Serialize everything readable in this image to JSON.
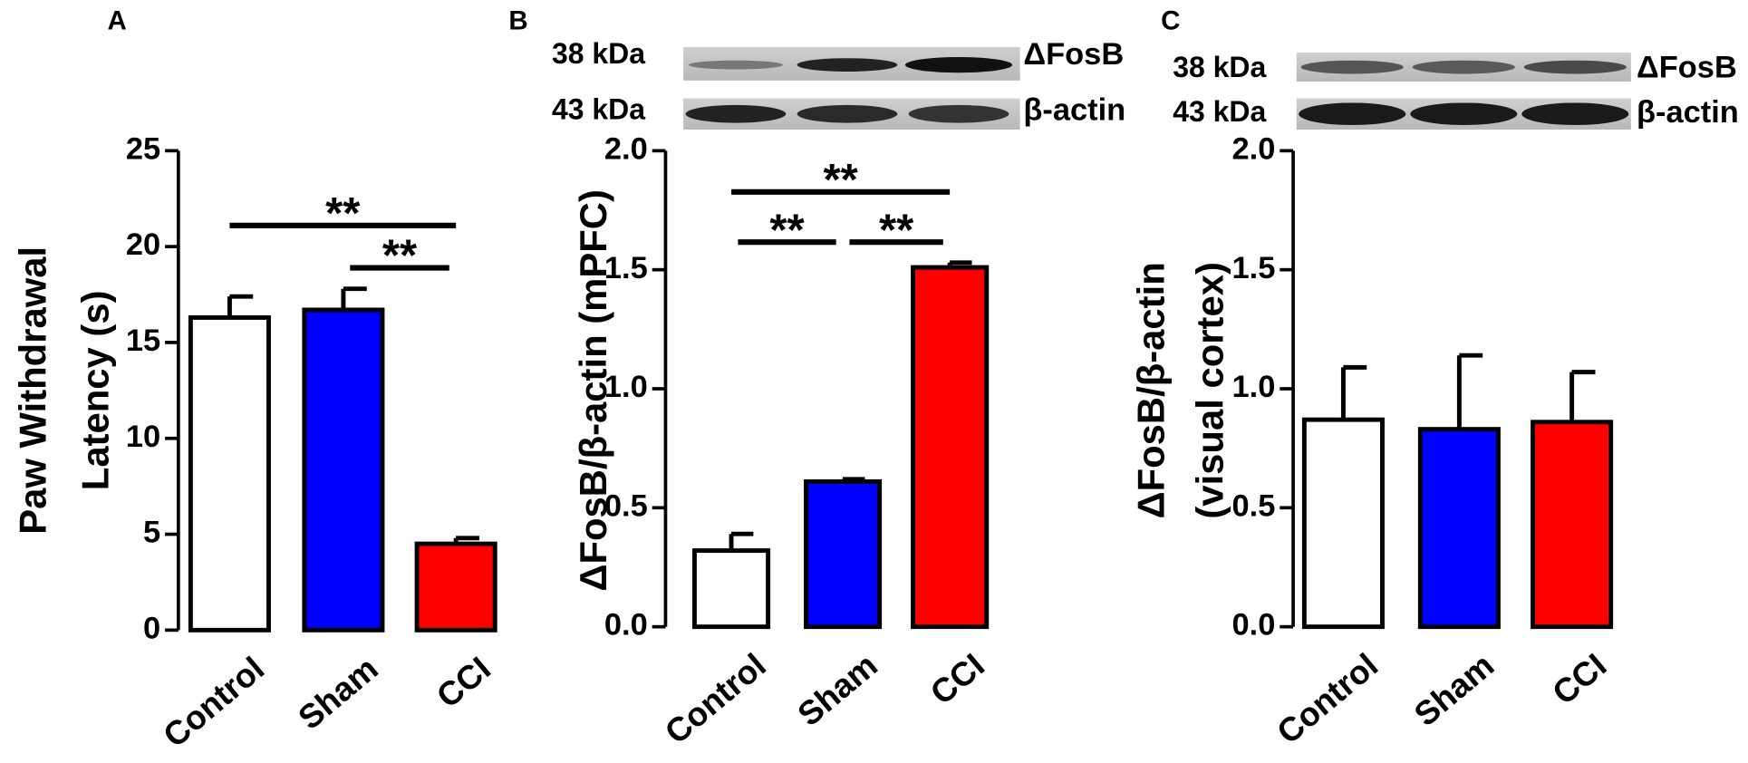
{
  "chart_data": [
    {
      "type": "bar",
      "panel_label": "A",
      "ylabel": [
        "Paw Withdrawal",
        "Latency (s)"
      ],
      "categories": [
        "Control",
        "Sham",
        "CCI"
      ],
      "values": [
        16.3,
        16.7,
        4.5
      ],
      "errors": [
        1.1,
        1.1,
        0.3
      ],
      "colors": [
        "#ffffff",
        "#0000ff",
        "#ff0000"
      ],
      "ylim": [
        0,
        25
      ],
      "yticks": [
        0,
        5,
        10,
        15,
        20,
        25
      ],
      "annotations": [
        {
          "text": "**",
          "from": 0,
          "to": 2
        },
        {
          "text": "**",
          "from": 1,
          "to": 2
        }
      ]
    },
    {
      "type": "bar",
      "panel_label": "B",
      "ylabel": [
        "ΔFosB/β-actin (mPFC)"
      ],
      "blot": [
        {
          "kda": "38 kDa",
          "protein": "ΔFosB"
        },
        {
          "kda": "43 kDa",
          "protein": "β-actin"
        }
      ],
      "categories": [
        "Control",
        "Sham",
        "CCI"
      ],
      "values": [
        0.32,
        0.61,
        1.51
      ],
      "errors": [
        0.07,
        0.01,
        0.02
      ],
      "colors": [
        "#ffffff",
        "#0000ff",
        "#ff0000"
      ],
      "ylim": [
        0,
        2
      ],
      "yticks": [
        {
          "value": 0,
          "label": "0.0"
        },
        {
          "value": 0.5,
          "label": "0.5"
        },
        {
          "value": 1,
          "label": "1.0"
        },
        {
          "value": 1.5,
          "label": "1.5"
        },
        {
          "value": 2,
          "label": "2.0"
        }
      ],
      "annotations": [
        {
          "text": "**",
          "from": 0,
          "to": 2
        },
        {
          "text": "**",
          "from": 0,
          "to": 1
        },
        {
          "text": "**",
          "from": 1,
          "to": 2
        }
      ]
    },
    {
      "type": "bar",
      "panel_label": "C",
      "ylabel": [
        "ΔFosB/β-actin",
        "(visual cortex)"
      ],
      "blot": [
        {
          "kda": "38 kDa",
          "protein": "ΔFosB"
        },
        {
          "kda": "43 kDa",
          "protein": "β-actin"
        }
      ],
      "categories": [
        "Control",
        "Sham",
        "CCI"
      ],
      "values": [
        0.87,
        0.83,
        0.86
      ],
      "errors": [
        0.22,
        0.31,
        0.21
      ],
      "colors": [
        "#ffffff",
        "#0000ff",
        "#ff0000"
      ],
      "ylim": [
        0,
        2
      ],
      "yticks": [
        {
          "value": 0,
          "label": "0.0"
        },
        {
          "value": 0.5,
          "label": "0.5"
        },
        {
          "value": 1,
          "label": "1.0"
        },
        {
          "value": 1.5,
          "label": "1.5"
        },
        {
          "value": 2,
          "label": "2.0"
        }
      ],
      "annotations": []
    }
  ]
}
